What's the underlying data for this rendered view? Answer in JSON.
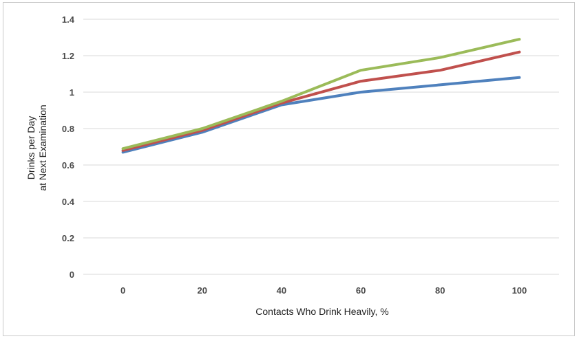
{
  "chart_data": {
    "type": "line",
    "title": "",
    "xlabel": "Contacts Who Drink Heavily, %",
    "ylabel_line1": "Drinks per Day",
    "ylabel_line2": "at Next Examination",
    "x": [
      0,
      20,
      40,
      60,
      80,
      100
    ],
    "x_tick_labels": [
      "0",
      "20",
      "40",
      "60",
      "80",
      "100"
    ],
    "xlim": [
      -10,
      110
    ],
    "ylim": [
      0,
      1.4
    ],
    "y_ticks": [
      0,
      0.2,
      0.4,
      0.6,
      0.8,
      1,
      1.2,
      1.4
    ],
    "y_tick_labels": [
      "0",
      "0.2",
      "0.4",
      "0.6",
      "0.8",
      "1",
      "1.2",
      "1.4"
    ],
    "grid": true,
    "series": [
      {
        "name": "blue-series",
        "color": "#4f81bd",
        "values": [
          0.67,
          0.78,
          0.93,
          1.0,
          1.04,
          1.08
        ]
      },
      {
        "name": "red-series",
        "color": "#c0504d",
        "values": [
          0.68,
          0.79,
          0.94,
          1.06,
          1.12,
          1.22
        ]
      },
      {
        "name": "green-series",
        "color": "#9bbb59",
        "values": [
          0.69,
          0.8,
          0.95,
          1.12,
          1.19,
          1.29
        ]
      }
    ]
  }
}
